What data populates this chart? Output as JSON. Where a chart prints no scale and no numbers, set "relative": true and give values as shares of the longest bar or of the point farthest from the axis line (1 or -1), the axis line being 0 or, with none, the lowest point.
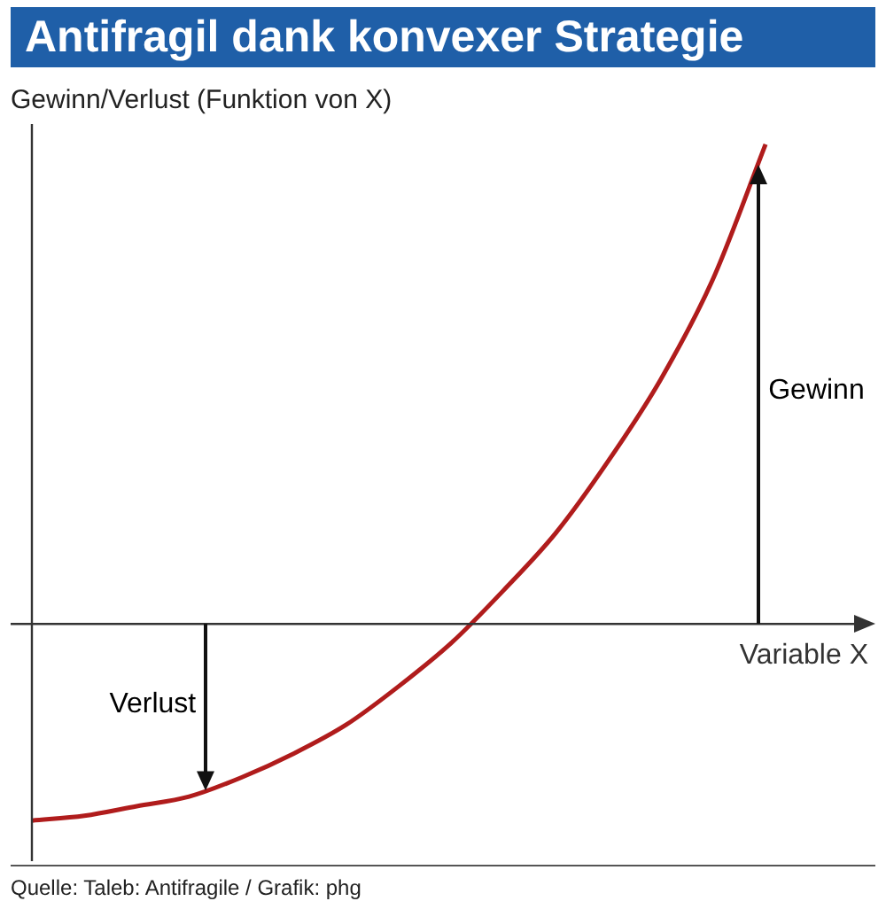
{
  "chart_data": {
    "type": "line",
    "title": "Antifragil dank konvexer Strategie",
    "ylabel": "Gewinn/Verlust (Funktion von X)",
    "xlabel": "Variable X",
    "relative": true,
    "legend": false,
    "marker": "none",
    "line_style": "solid",
    "categories": [
      null,
      null,
      null,
      null,
      null,
      null,
      null,
      null,
      null,
      null,
      null,
      null,
      null,
      null,
      null
    ],
    "series": [
      {
        "color": "#b01c1c",
        "values": [
          -0.41,
          -0.4,
          -0.38,
          -0.36,
          -0.32,
          -0.27,
          -0.21,
          -0.13,
          -0.04,
          0.07,
          0.19,
          0.34,
          0.51,
          0.72,
          1
        ]
      }
    ],
    "annotations": [
      "Verlust",
      "Gewinn",
      "Quelle: Taleb: Antifragile / Grafik: phg"
    ]
  }
}
